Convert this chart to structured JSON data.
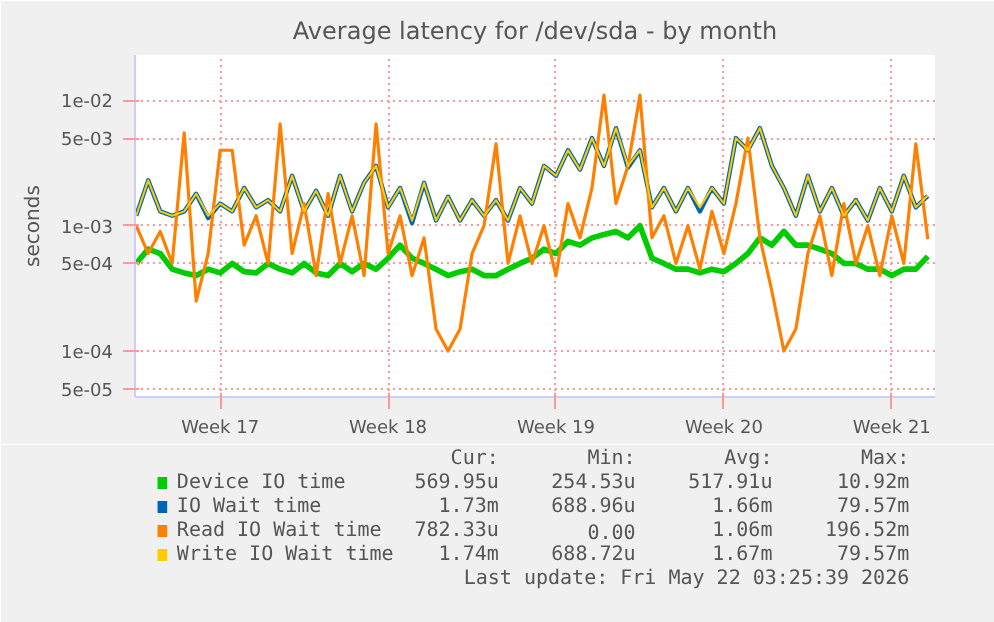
{
  "chart_data": {
    "type": "line",
    "title": "Average latency for /dev/sda - by month",
    "ylabel": "seconds",
    "log": true,
    "grid": true,
    "legend": "bottom",
    "line_style": "solid",
    "marker": "none",
    "categories": [
      null,
      null,
      null,
      null,
      null,
      null,
      null,
      "Week 17",
      null,
      null,
      null,
      null,
      null,
      null,
      null,
      null,
      null,
      null,
      null,
      null,
      null,
      "Week 18",
      null,
      null,
      null,
      null,
      null,
      null,
      null,
      null,
      null,
      null,
      null,
      null,
      null,
      "Week 19",
      null,
      null,
      null,
      null,
      null,
      null,
      null,
      null,
      null,
      null,
      null,
      null,
      null,
      "Week 20",
      null,
      null,
      null,
      null,
      null,
      null,
      null,
      null,
      null,
      null,
      null,
      null,
      null,
      "Week 21",
      null,
      null,
      null
    ],
    "ylim": [
      4.3e-05,
      0.023
    ],
    "yticks": [
      {
        "value": 5e-05,
        "label": "5e-05"
      },
      {
        "value": 0.0001,
        "label": "1e-04"
      },
      {
        "value": 0.0005,
        "label": "5e-04"
      },
      {
        "value": 0.001,
        "label": "1e-03"
      },
      {
        "value": 0.005,
        "label": "5e-03"
      },
      {
        "value": 0.01,
        "label": "1e-02"
      }
    ],
    "series": [
      {
        "name": "Device IO time",
        "color": "#00cc00",
        "values": [
          0.0005,
          0.00065,
          0.0006,
          0.00045,
          0.00042,
          0.0004,
          0.00045,
          0.00042,
          0.0005,
          0.00043,
          0.00042,
          0.0005,
          0.00045,
          0.00042,
          0.0005,
          0.00042,
          0.0004,
          0.0005,
          0.00043,
          0.0005,
          0.00045,
          0.00055,
          0.0007,
          0.00055,
          0.0005,
          0.00045,
          0.0004,
          0.00043,
          0.00045,
          0.0004,
          0.0004,
          0.00045,
          0.0005,
          0.00055,
          0.00065,
          0.0006,
          0.00075,
          0.0007,
          0.0008,
          0.00085,
          0.0009,
          0.0008,
          0.001,
          0.00055,
          0.0005,
          0.00045,
          0.00045,
          0.00042,
          0.00045,
          0.00043,
          0.0005,
          0.0006,
          0.0008,
          0.0007,
          0.0009,
          0.0007,
          0.0007,
          0.00065,
          0.0006,
          0.0005,
          0.0005,
          0.00045,
          0.00045,
          0.0004,
          0.00045,
          0.00045,
          0.00057
        ]
      },
      {
        "name": "IO Wait time",
        "color": "#0066b3",
        "values": [
          0.0012,
          0.0023,
          0.0013,
          0.0012,
          0.0013,
          0.0018,
          0.00115,
          0.0015,
          0.0013,
          0.002,
          0.0014,
          0.0016,
          0.0013,
          0.0025,
          0.0013,
          0.0019,
          0.0012,
          0.0025,
          0.0013,
          0.0022,
          0.003,
          0.0014,
          0.002,
          0.00105,
          0.0022,
          0.0011,
          0.0017,
          0.0011,
          0.0016,
          0.0012,
          0.0016,
          0.0011,
          0.002,
          0.0015,
          0.003,
          0.0025,
          0.004,
          0.0028,
          0.005,
          0.003,
          0.006,
          0.0029,
          0.004,
          0.0014,
          0.002,
          0.0013,
          0.002,
          0.0013,
          0.002,
          0.0015,
          0.005,
          0.004,
          0.006,
          0.003,
          0.002,
          0.0012,
          0.0025,
          0.0013,
          0.002,
          0.0012,
          0.0016,
          0.0011,
          0.002,
          0.0013,
          0.0025,
          0.0014,
          0.00173
        ]
      },
      {
        "name": "Read IO Wait time",
        "color": "#ff8000",
        "values": [
          0.001,
          0.0006,
          0.0009,
          0.0005,
          0.0055,
          0.00025,
          0.0006,
          0.004,
          0.004,
          0.0007,
          0.0012,
          0.0005,
          0.0065,
          0.0006,
          0.0015,
          0.0004,
          0.0018,
          0.0005,
          0.0012,
          0.0004,
          0.0065,
          0.0006,
          0.0012,
          0.0004,
          0.0008,
          0.00015,
          0.0001,
          0.00015,
          0.0006,
          0.001,
          0.0045,
          0.0005,
          0.0012,
          0.0005,
          0.001,
          0.0004,
          0.0015,
          0.0008,
          0.002,
          0.011,
          0.0015,
          0.003,
          0.011,
          0.0008,
          0.0012,
          0.0005,
          0.001,
          0.00045,
          0.0013,
          0.0006,
          0.0015,
          0.005,
          0.0008,
          0.0003,
          0.0001,
          0.00015,
          0.0006,
          0.0012,
          0.0004,
          0.0015,
          0.0005,
          0.001,
          0.0004,
          0.0012,
          0.0005,
          0.0045,
          0.00078
        ]
      },
      {
        "name": "Write IO Wait time",
        "color": "#ffcc00",
        "values": [
          0.0012,
          0.0023,
          0.0013,
          0.0012,
          0.0013,
          0.0018,
          0.0012,
          0.0015,
          0.0013,
          0.002,
          0.0014,
          0.0016,
          0.0013,
          0.0025,
          0.0013,
          0.0019,
          0.0012,
          0.0025,
          0.0013,
          0.0022,
          0.003,
          0.0014,
          0.002,
          0.0011,
          0.0022,
          0.0011,
          0.0017,
          0.0011,
          0.0016,
          0.0012,
          0.0016,
          0.0011,
          0.002,
          0.0015,
          0.003,
          0.0025,
          0.004,
          0.0028,
          0.005,
          0.003,
          0.006,
          0.003,
          0.004,
          0.0014,
          0.002,
          0.0013,
          0.002,
          0.0014,
          0.002,
          0.0015,
          0.005,
          0.004,
          0.006,
          0.003,
          0.002,
          0.0012,
          0.0025,
          0.0013,
          0.002,
          0.0012,
          0.0016,
          0.0011,
          0.002,
          0.0013,
          0.0025,
          0.0014,
          0.00174
        ]
      }
    ],
    "annotations": [
      "Cur:",
      "Min:",
      "Avg:",
      "Max:",
      "569.95u",
      "254.53u",
      "517.91u",
      "10.92m",
      "1.73m",
      "688.96u",
      "1.66m",
      "79.57m",
      "782.33u",
      "0.00",
      "1.06m",
      "196.52m",
      "1.74m",
      "688.72u",
      "1.67m",
      "79.57m",
      "Last update: Fri May 22 03:25:39 2026"
    ]
  }
}
